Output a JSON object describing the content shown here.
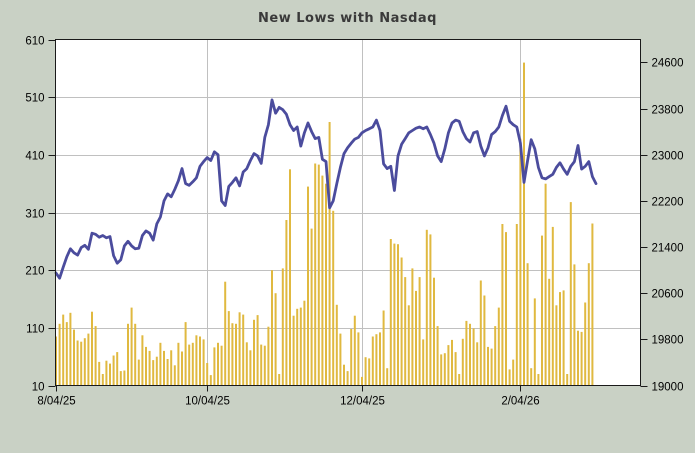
{
  "chart_data": {
    "type": "combo",
    "title": "New Lows with Nasdaq",
    "legend": "none",
    "grid": "on",
    "x_axis": {
      "tick_labels": [
        "8/04/25",
        "10/04/25",
        "12/04/25",
        "2/04/26"
      ],
      "tick_indices": [
        0,
        42,
        85,
        129
      ],
      "points_total": 151
    },
    "left_axis": {
      "min": 10,
      "max": 610,
      "step": 100,
      "tick_labels": [
        "610",
        "510",
        "410",
        "310",
        "210",
        "110",
        "10"
      ],
      "tick_values": [
        610,
        510,
        410,
        310,
        210,
        110,
        10
      ]
    },
    "right_axis": {
      "min": 19000,
      "step": 800,
      "tick_labels": [
        "24600",
        "23800",
        "23000",
        "22200",
        "21400",
        "20600",
        "19800",
        "19000"
      ],
      "tick_values": [
        24600,
        23800,
        23000,
        22200,
        21400,
        20600,
        19800,
        19000
      ]
    },
    "series": [
      {
        "name": "New Lows",
        "type": "bar",
        "axis": "left",
        "color": "#E0B940",
        "values": [
          95,
          117,
          133,
          120,
          136,
          107,
          88,
          86,
          92,
          100,
          138,
          113,
          51,
          30,
          53,
          48,
          62,
          68,
          35,
          36,
          117,
          145,
          117,
          55,
          97,
          77,
          70,
          54,
          60,
          84,
          70,
          56,
          71,
          45,
          84,
          69,
          120,
          81,
          84,
          97,
          95,
          90,
          49,
          28,
          76,
          84,
          79,
          190,
          139,
          118,
          117,
          137,
          133,
          85,
          71,
          124,
          132,
          81,
          79,
          112,
          210,
          170,
          30,
          213,
          297,
          385,
          131,
          143,
          145,
          157,
          355,
          282,
          395,
          393,
          374,
          360,
          467,
          313,
          150,
          100,
          46,
          35,
          108,
          131,
          102,
          25,
          59,
          57,
          95,
          99,
          102,
          140,
          40,
          264,
          256,
          255,
          232,
          198,
          149,
          213,
          174,
          198,
          90,
          280,
          272,
          197,
          113,
          64,
          66,
          80,
          89,
          68,
          30,
          91,
          122,
          117,
          109,
          85,
          192,
          166,
          77,
          74,
          113,
          145,
          290,
          276,
          38,
          55,
          290,
          438,
          570,
          222,
          40,
          161,
          30,
          270,
          360,
          195,
          285,
          149,
          172,
          175,
          30,
          328,
          220,
          105,
          103,
          154,
          222,
          291,
          null
        ]
      },
      {
        "name": "Nasdaq",
        "type": "line",
        "axis": "right",
        "color": "#4B4C9D",
        "values": [
          20950,
          20860,
          21050,
          21230,
          21370,
          21300,
          21260,
          21390,
          21430,
          21360,
          21640,
          21620,
          21570,
          21600,
          21560,
          21580,
          21250,
          21120,
          21180,
          21420,
          21500,
          21420,
          21370,
          21380,
          21600,
          21680,
          21640,
          21520,
          21800,
          21920,
          22200,
          22320,
          22270,
          22400,
          22550,
          22760,
          22500,
          22470,
          22530,
          22600,
          22800,
          22880,
          22950,
          22900,
          23050,
          23000,
          22200,
          22120,
          22450,
          22520,
          22600,
          22460,
          22700,
          22760,
          22900,
          23020,
          22980,
          22850,
          23300,
          23520,
          23950,
          23720,
          23820,
          23780,
          23700,
          23520,
          23420,
          23480,
          23150,
          23380,
          23550,
          23400,
          23280,
          23300,
          22920,
          22880,
          22080,
          22200,
          22500,
          22780,
          23020,
          23120,
          23200,
          23270,
          23300,
          23380,
          23420,
          23450,
          23480,
          23600,
          23420,
          22840,
          22760,
          22800,
          22380,
          22980,
          23180,
          23280,
          23380,
          23420,
          23460,
          23480,
          23450,
          23480,
          23350,
          23200,
          22980,
          22880,
          23100,
          23380,
          23550,
          23600,
          23580,
          23400,
          23280,
          23220,
          23380,
          23400,
          23150,
          22980,
          23120,
          23350,
          23400,
          23480,
          23680,
          23840,
          23580,
          23520,
          23480,
          23200,
          22520,
          22900,
          23260,
          23100,
          22780,
          22600,
          22580,
          22620,
          22660,
          22780,
          22860,
          22750,
          22660,
          22800,
          22880,
          23160,
          22750,
          22800,
          22880,
          22620,
          22500
        ]
      }
    ],
    "colors": {
      "background": "#C9D1C5",
      "plot_background": "#FFFFFF",
      "gridline": "#C0C0C0",
      "axis_border": "#1a1a1a",
      "tick_text": "#000000",
      "title_text": "#3a3a3a",
      "bar": "#E0B940",
      "line": "#4B4C9D"
    }
  }
}
